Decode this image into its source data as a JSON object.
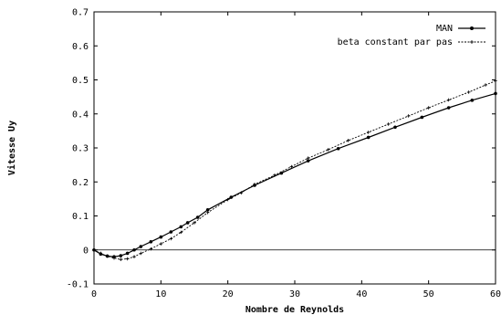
{
  "chart_data": {
    "type": "line",
    "title": "",
    "xlabel": "Nombre de Reynolds",
    "ylabel": "Vitesse Uy",
    "xlim": [
      0,
      60
    ],
    "ylim": [
      -0.1,
      0.7
    ],
    "x_ticks": [
      0,
      10,
      20,
      30,
      40,
      50,
      60
    ],
    "y_ticks": [
      -0.1,
      0,
      0.1,
      0.2,
      0.3,
      0.4,
      0.5,
      0.6,
      0.7
    ],
    "x_tick_labels": [
      "0",
      "10",
      "20",
      "30",
      "40",
      "50",
      "60"
    ],
    "y_tick_labels": [
      "-0.1",
      "0",
      "0.1",
      "0.2",
      "0.3",
      "0.4",
      "0.5",
      "0.6",
      "0.7"
    ],
    "grid": false,
    "legend_position": "top-right",
    "zero_line": true,
    "series": [
      {
        "name": "MAN",
        "style": "solid",
        "marker": "circle",
        "color": "#000000",
        "x": [
          0,
          1,
          2,
          3,
          4,
          5,
          6,
          7,
          8.5,
          10,
          11.5,
          13,
          14,
          15.5,
          17,
          20.5,
          24,
          28,
          32,
          36.5,
          41,
          45,
          49,
          53,
          56.5,
          60
        ],
        "y": [
          0.0,
          -0.012,
          -0.018,
          -0.02,
          -0.017,
          -0.01,
          0.0,
          0.01,
          0.024,
          0.038,
          0.053,
          0.068,
          0.08,
          0.096,
          0.118,
          0.155,
          0.19,
          0.226,
          0.262,
          0.298,
          0.331,
          0.361,
          0.39,
          0.418,
          0.44,
          0.46
        ]
      },
      {
        "name": "beta constant par pas",
        "style": "dashed",
        "marker": "plus",
        "color": "#000000",
        "x": [
          0,
          1,
          2,
          3,
          4,
          5,
          6,
          7,
          8.5,
          10,
          11.5,
          13,
          15,
          17,
          20,
          22,
          24,
          27,
          29.5,
          32,
          35,
          38,
          41,
          44,
          47,
          50,
          53,
          56,
          58.5,
          60
        ],
        "y": [
          0.0,
          -0.01,
          -0.018,
          -0.024,
          -0.028,
          -0.026,
          -0.02,
          -0.01,
          0.003,
          0.018,
          0.033,
          0.052,
          0.08,
          0.11,
          0.148,
          0.168,
          0.193,
          0.22,
          0.245,
          0.27,
          0.295,
          0.322,
          0.346,
          0.37,
          0.394,
          0.418,
          0.441,
          0.464,
          0.485,
          0.497
        ]
      }
    ]
  }
}
